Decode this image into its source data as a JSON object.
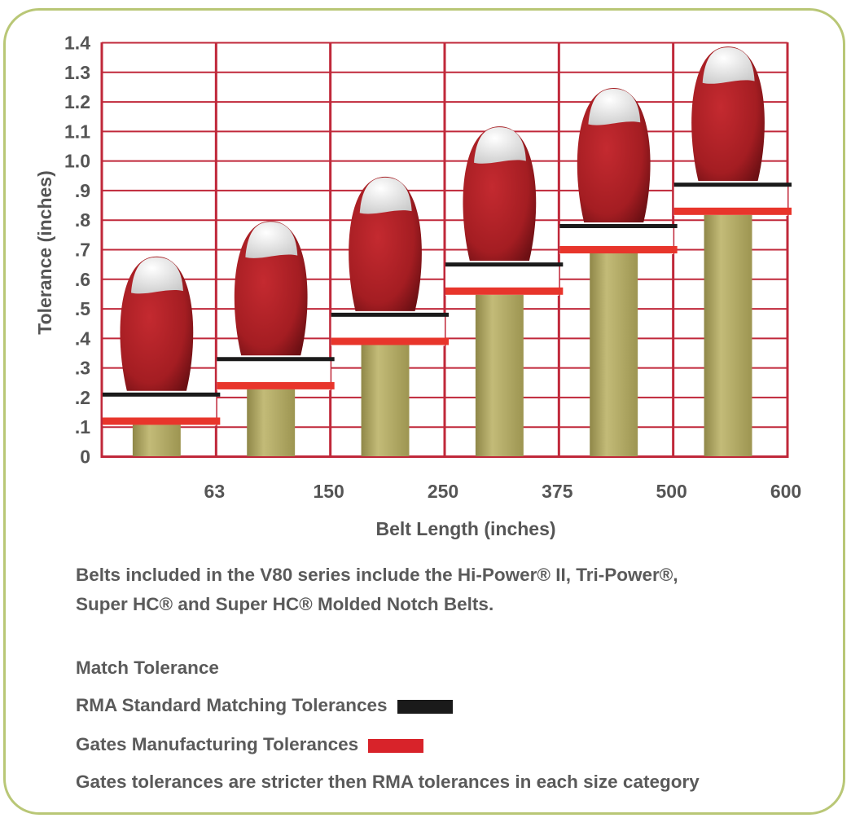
{
  "chart_data": {
    "type": "bar",
    "xlabel": "Belt Length (inches)",
    "ylabel": "Tolerance (inches)",
    "x_ticks": [
      "63",
      "150",
      "250",
      "375",
      "500",
      "600"
    ],
    "y_ticks": [
      "0",
      ".1",
      ".2",
      ".3",
      ".4",
      ".5",
      ".6",
      ".7",
      ".8",
      ".9",
      "1.0",
      "1.1",
      "1.2",
      "1.3",
      "1.4"
    ],
    "ylim": [
      0,
      1.4
    ],
    "categories": [
      "0-63",
      "63-150",
      "150-250",
      "250-375",
      "375-500",
      "500-600"
    ],
    "series": [
      {
        "name": "RMA Standard Matching Tolerances",
        "values": [
          0.21,
          0.33,
          0.48,
          0.65,
          0.78,
          0.92
        ],
        "color": "#1a1a1a"
      },
      {
        "name": "Gates Manufacturing Tolerances",
        "values": [
          0.12,
          0.24,
          0.39,
          0.56,
          0.7,
          0.83
        ],
        "color": "#e8352b"
      }
    ],
    "grid": true,
    "colors": {
      "grid": "#c0283a",
      "pillar": "#b2a963",
      "bulb": "#ab1f25",
      "bulb_tip": "#e4e4e4",
      "border": "#b9c776"
    }
  },
  "notes": {
    "description_line1": "Belts included in the V80 series include the Hi-Power® II, Tri-Power®,",
    "description_line2": "Super HC® and Super HC® Molded Notch Belts.",
    "match_heading": "Match Tolerance",
    "rma_label": "RMA Standard Matching Tolerances",
    "gates_label": "Gates Manufacturing Tolerances",
    "footnote": "Gates tolerances are stricter then RMA tolerances in each size category"
  }
}
